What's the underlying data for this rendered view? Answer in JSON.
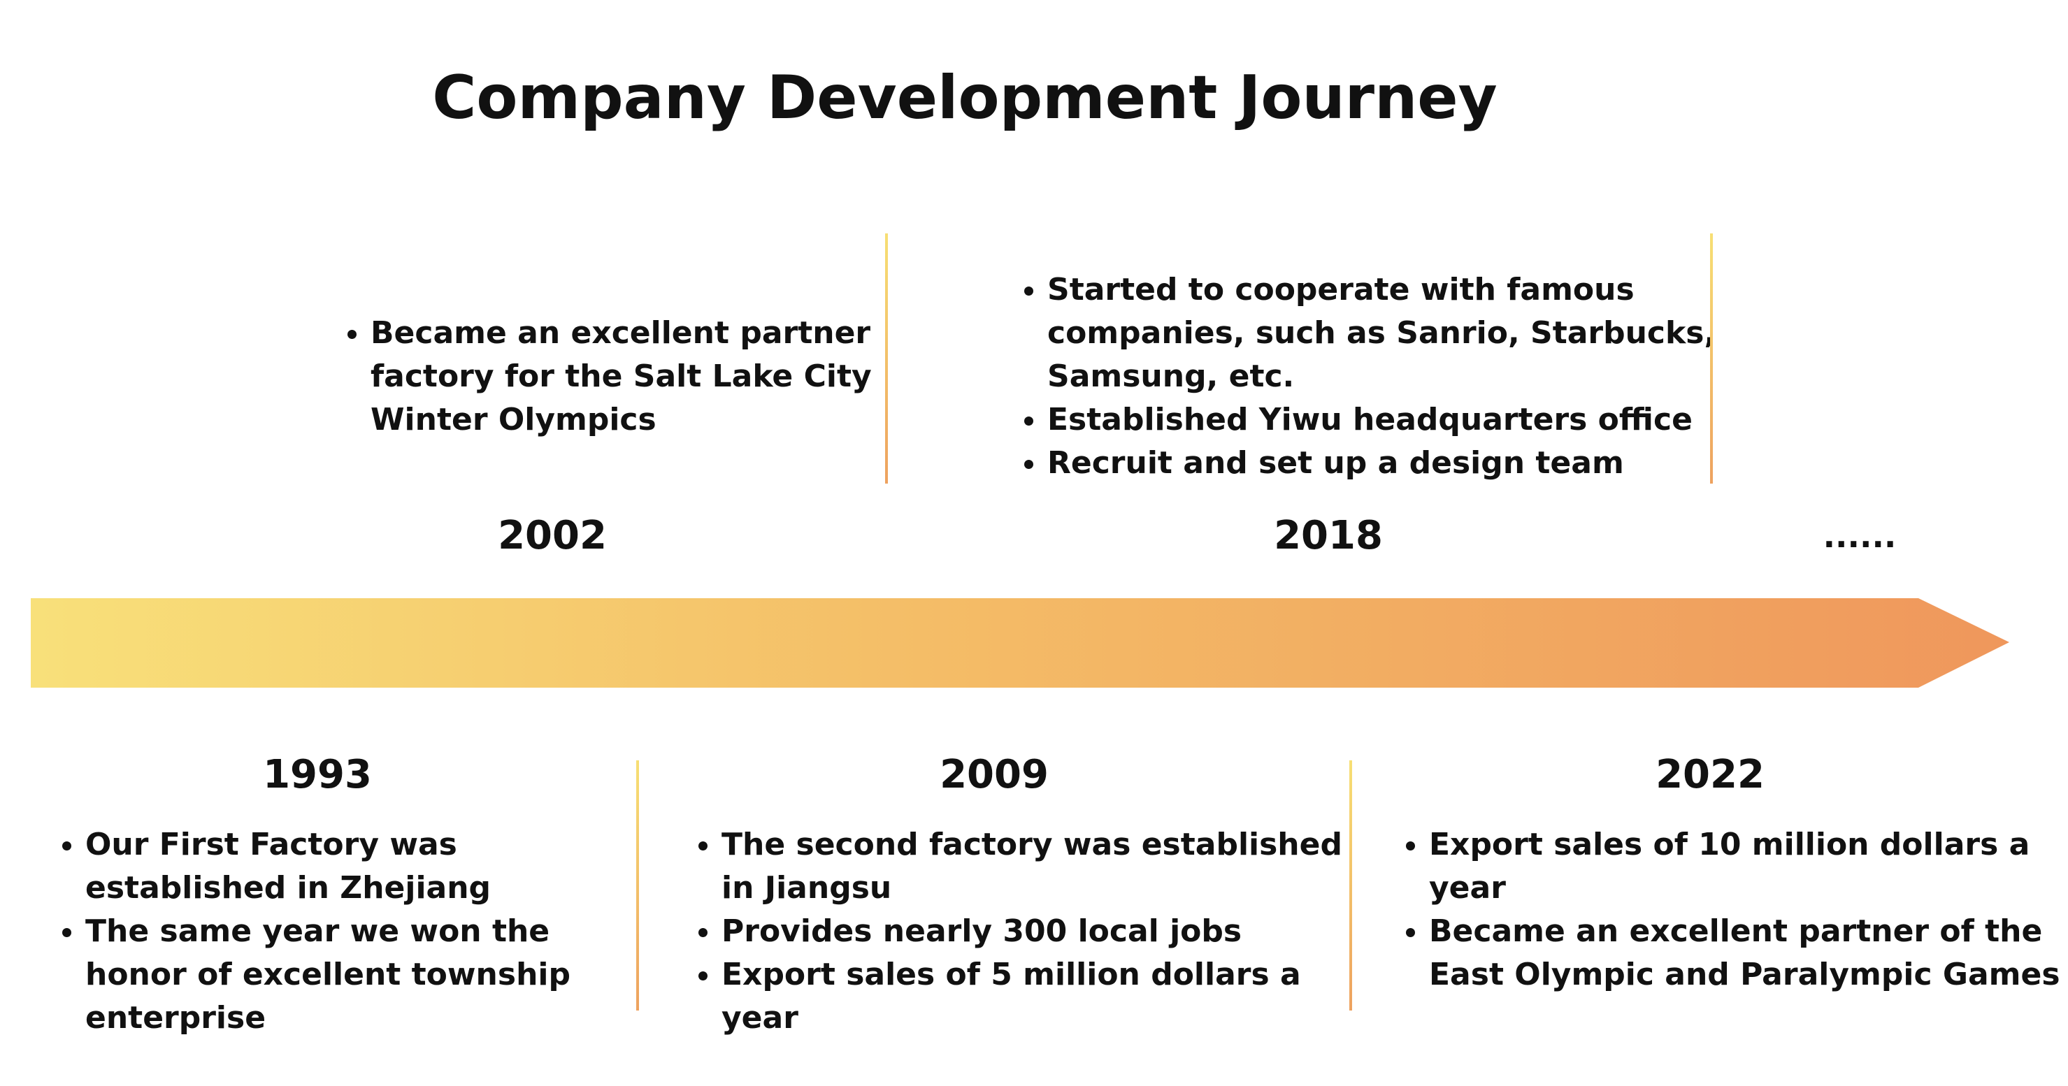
{
  "title": "Company Development Journey",
  "colors": {
    "gradient_start": "#f8e07a",
    "gradient_mid": "#f4bd67",
    "gradient_end": "#ef975c"
  },
  "ellipsis": "......",
  "milestones": {
    "m1993": {
      "year": "1993",
      "items": [
        "Our First Factory was established in Zhejiang",
        "The same year we won the honor of excellent township enterprise"
      ]
    },
    "m2002": {
      "year": "2002",
      "items": [
        "Became an excellent partner factory for the Salt Lake City Winter Olympics"
      ]
    },
    "m2009": {
      "year": "2009",
      "items": [
        "The second factory was established in Jiangsu",
        "Provides nearly 300 local jobs",
        "Export sales of 5 million dollars a year"
      ]
    },
    "m2018": {
      "year": "2018",
      "items": [
        "Started to cooperate with famous companies, such as Sanrio, Starbucks, Samsung, etc.",
        "Established Yiwu headquarters office",
        "Recruit and set up a design team"
      ]
    },
    "m2022": {
      "year": "2022",
      "items": [
        "Export sales of 10 million dollars a year",
        "Became an excellent partner of the East Olympic and Paralympic Games"
      ]
    }
  }
}
